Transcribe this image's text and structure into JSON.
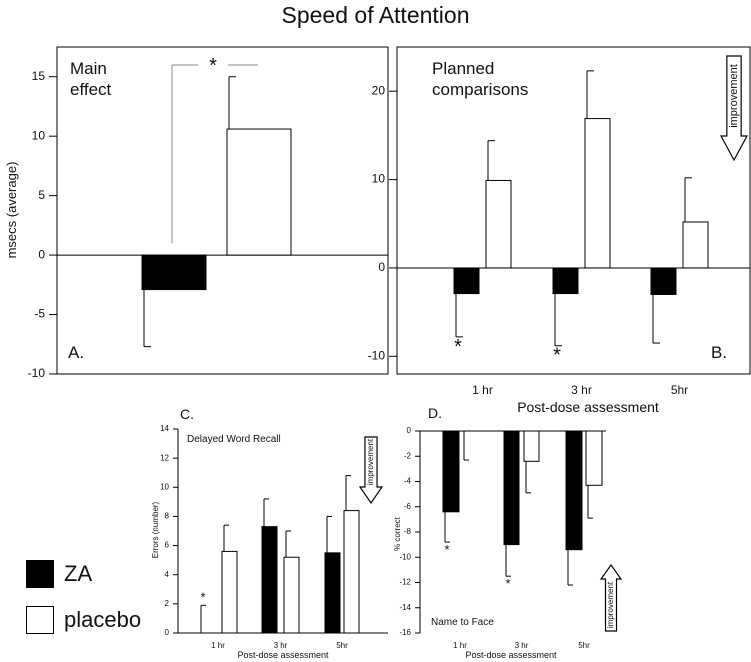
{
  "title": "Speed of Attention",
  "colors": {
    "za": "#000000",
    "placebo": "#ffffff",
    "axis": "#000000"
  },
  "legend": [
    {
      "label": "ZA",
      "color": "#000000"
    },
    {
      "label": "placebo",
      "color": "#ffffff"
    }
  ],
  "chart_data": [
    {
      "id": "A",
      "type": "bar",
      "panel_label": "A.",
      "title_lines": [
        "Main",
        "effect"
      ],
      "ylabel": "msecs (average)",
      "xlabel": "",
      "ylim": [
        -10,
        17.5
      ],
      "yticks": [
        15,
        10,
        5,
        0,
        -5,
        -10
      ],
      "categories": [
        ""
      ],
      "series": [
        {
          "name": "ZA",
          "values": [
            -2.9
          ],
          "err_low": [
            4.8
          ],
          "err_high": [
            0
          ]
        },
        {
          "name": "placebo",
          "values": [
            10.6
          ],
          "err_low": [
            0
          ],
          "err_high": [
            4.4
          ]
        }
      ],
      "sig_markers": [
        {
          "text": "*",
          "type": "bracket"
        }
      ]
    },
    {
      "id": "B",
      "type": "bar",
      "panel_label": "B.",
      "title_lines": [
        "Planned",
        "comparisons"
      ],
      "ylabel": "",
      "xlabel": "Post-dose assessment",
      "ylim": [
        -12,
        25
      ],
      "yticks": [
        20,
        10,
        0,
        -10
      ],
      "categories": [
        "1 hr",
        "3 hr",
        "5hr"
      ],
      "series": [
        {
          "name": "ZA",
          "values": [
            -2.9,
            -2.9,
            -3.0
          ],
          "err_low": [
            4.9,
            5.9,
            5.5
          ],
          "err_high": [
            0,
            0,
            0
          ]
        },
        {
          "name": "placebo",
          "values": [
            9.9,
            16.9,
            5.2
          ],
          "err_low": [
            0,
            0,
            0
          ],
          "err_high": [
            4.5,
            5.4,
            5.0
          ]
        }
      ],
      "sig_markers": [
        {
          "text": "*",
          "category": 0
        },
        {
          "text": "*",
          "category": 1
        }
      ],
      "arrow_label": "improvement"
    },
    {
      "id": "C",
      "type": "bar",
      "panel_label": "C.",
      "title_lines": [
        "Delayed Word Recall"
      ],
      "ylabel": "Errors (number)",
      "xlabel": "Post-dose assessment",
      "ylim": [
        0,
        14
      ],
      "yticks": [
        0,
        2,
        4,
        6,
        8,
        10,
        12,
        14
      ],
      "categories": [
        "1 hr",
        "3 hr",
        "5hr"
      ],
      "series": [
        {
          "name": "ZA",
          "values": [
            0,
            7.3,
            5.5
          ],
          "err_low": [
            0,
            0,
            0
          ],
          "err_high": [
            1.9,
            1.9,
            2.5
          ]
        },
        {
          "name": "placebo",
          "values": [
            5.6,
            5.2,
            8.4
          ],
          "err_low": [
            0,
            0,
            0
          ],
          "err_high": [
            1.8,
            1.8,
            2.4
          ]
        }
      ],
      "sig_markers": [
        {
          "text": "*",
          "category": 0
        }
      ],
      "arrow_label": "improvement"
    },
    {
      "id": "D",
      "type": "bar",
      "panel_label": "D.",
      "title_lines": [
        "Name to Face"
      ],
      "ylabel": "% correct",
      "xlabel": "Post-dose assessment",
      "ylim": [
        -16,
        0
      ],
      "yticks": [
        0,
        -2,
        -4,
        -6,
        -8,
        -10,
        -12,
        -14,
        -16
      ],
      "categories": [
        "1 hr",
        "3 hr",
        "5hr"
      ],
      "series": [
        {
          "name": "ZA",
          "values": [
            -6.4,
            -9.0,
            -9.4
          ],
          "err_low": [
            2.4,
            2.5,
            2.8
          ],
          "err_high": [
            0,
            0,
            0
          ]
        },
        {
          "name": "placebo",
          "values": [
            0,
            -2.4,
            -4.3
          ],
          "err_low": [
            2.3,
            2.5,
            2.6
          ],
          "err_high": [
            0,
            0,
            0
          ]
        }
      ],
      "sig_markers": [
        {
          "text": "*",
          "category": 0
        },
        {
          "text": "*",
          "category": 1
        }
      ],
      "arrow_label": "improvement"
    }
  ]
}
